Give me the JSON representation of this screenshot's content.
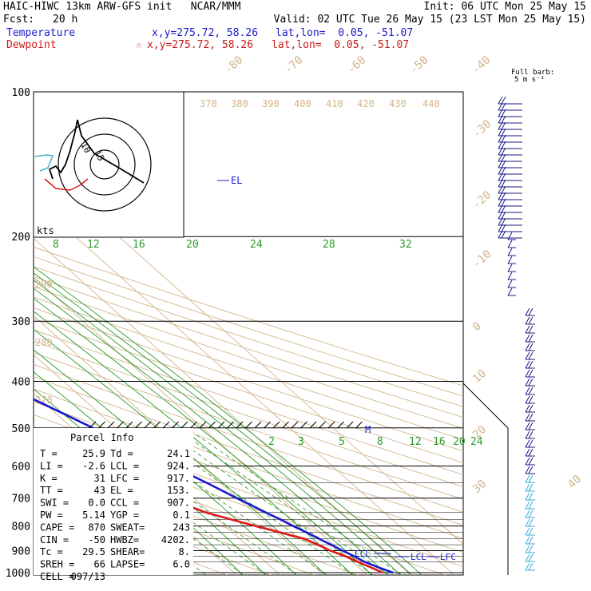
{
  "header": {
    "title": "HAIC-HIWC 13km ARW-GFS init   NCAR/MMM",
    "init": "Init: 06 UTC Mon 25 May 15",
    "fcst_label": "Fcst:",
    "fcst_value": "20 h",
    "valid": "Valid: 02 UTC Tue 26 May 15 (23 LST Mon 25 May 15)",
    "temp_label": "Temperature",
    "temp_xy": "x,y=275.72, 58.26",
    "temp_latlon": "lat,lon=  0.05, -51.07",
    "dew_label": "Dewpoint",
    "dew_xy": "x,y=275.72, 58.26",
    "dew_latlon": "lat,lon=  0.05, -51.07"
  },
  "barb_legend": {
    "line1": "Full barb:",
    "line2": "5 m s⁻¹"
  },
  "hodograph": {
    "units": "kts",
    "ring_labels": [
      "10",
      "15"
    ]
  },
  "parcel_info": {
    "title": "Parcel Info",
    "rows": [
      {
        "l": "T  =",
        "lv": "25.9",
        "r": "Td =",
        "rv": "24.1"
      },
      {
        "l": "LI =",
        "lv": "-2.6",
        "r": "LCL =",
        "rv": "924."
      },
      {
        "l": "K  =",
        "lv": "31",
        "r": "LFC =",
        "rv": "917."
      },
      {
        "l": "TT =",
        "lv": "43",
        "r": "EL  =",
        "rv": "153."
      },
      {
        "l": "SWI =",
        "lv": "0.0",
        "r": "CCL =",
        "rv": "907."
      },
      {
        "l": "PW =",
        "lv": "5.14",
        "r": "YGP =",
        "rv": "0.1"
      },
      {
        "l": "CAPE =",
        "lv": "870",
        "r": "SWEAT=",
        "rv": "243"
      },
      {
        "l": "CIN =",
        "lv": "-50",
        "r": "HWBZ=",
        "rv": "4202."
      },
      {
        "l": "Tc =",
        "lv": "29.5",
        "r": "SHEAR=",
        "rv": "8."
      },
      {
        "l": "SREH =",
        "lv": "66",
        "r": "LAPSE=",
        "rv": "6.0"
      },
      {
        "l": "CELL =",
        "lv": "097/13",
        "r": "",
        "rv": ""
      }
    ]
  },
  "colors": {
    "temperature": "#1a1acc",
    "dewpoint": "#dd1a1a",
    "isotherm": "#d2b48c",
    "mixing_ratio": "#2a9a2a",
    "isobar": "#000000",
    "barb": "#1a1a80",
    "barb_light": "#3fa7d6"
  },
  "chart_data": {
    "type": "line",
    "title": "Skew-T log-P diagram",
    "xlabel": "",
    "ylabel": "",
    "pressure_levels": [
      "100",
      "200",
      "300",
      "400",
      "500",
      "600",
      "700",
      "800",
      "900",
      "1000"
    ],
    "isotherm_labels": [
      "-80",
      "-70",
      "-60",
      "-50",
      "-40",
      "-30",
      "-20",
      "-10",
      "0",
      "10",
      "20",
      "30",
      "40"
    ],
    "theta_labels": [
      "370",
      "380",
      "390",
      "400",
      "410",
      "420",
      "430",
      "440",
      "290",
      "280",
      "270"
    ],
    "mixing_ratio_labels_top": [
      "8",
      "12",
      "16",
      "20",
      "24",
      "28",
      "32"
    ],
    "mixing_ratio_labels_low": [
      "2",
      "3",
      "5",
      "8",
      "12",
      "16",
      "20",
      "24"
    ],
    "annotations": [
      "EL",
      "M",
      "CCL",
      "LCL",
      "LFC"
    ],
    "series": [
      {
        "name": "Temperature",
        "p": [
          1000,
          975,
          950,
          925,
          900,
          875,
          850,
          825,
          800,
          775,
          750,
          700,
          650,
          600,
          550,
          500,
          450,
          400,
          350,
          300,
          250,
          220,
          200,
          175,
          150,
          125,
          100
        ],
        "t": [
          26.5,
          24.5,
          22.8,
          21.8,
          20.6,
          19.5,
          18.2,
          17.0,
          15.6,
          14.3,
          12.8,
          9.8,
          6.8,
          3.2,
          -0.6,
          -5.2,
          -10.0,
          -15.5,
          -22.0,
          -30.0,
          -40.0,
          -45.5,
          -49.5,
          -55.5,
          -63.0,
          -71.0,
          -76.0
        ]
      },
      {
        "name": "Dewpoint",
        "p": [
          1000,
          975,
          950,
          925,
          900,
          875,
          850,
          825,
          800,
          775,
          750,
          700,
          650,
          600,
          550,
          500,
          450,
          400,
          350,
          300,
          275,
          250,
          220,
          200,
          175,
          150,
          125,
          100
        ],
        "t": [
          24.1,
          22.8,
          21.2,
          19.8,
          17.8,
          16.5,
          14.8,
          11.0,
          7.0,
          3.0,
          -1.0,
          -6.0,
          -13.5,
          -20.5,
          -29.5,
          -38.0,
          -35.5,
          -34.5,
          -42.0,
          -42.0,
          -45.0,
          -62.0,
          -66.0,
          -68.0,
          -80.0,
          -82.0,
          -84.0,
          -87.0
        ]
      }
    ]
  }
}
